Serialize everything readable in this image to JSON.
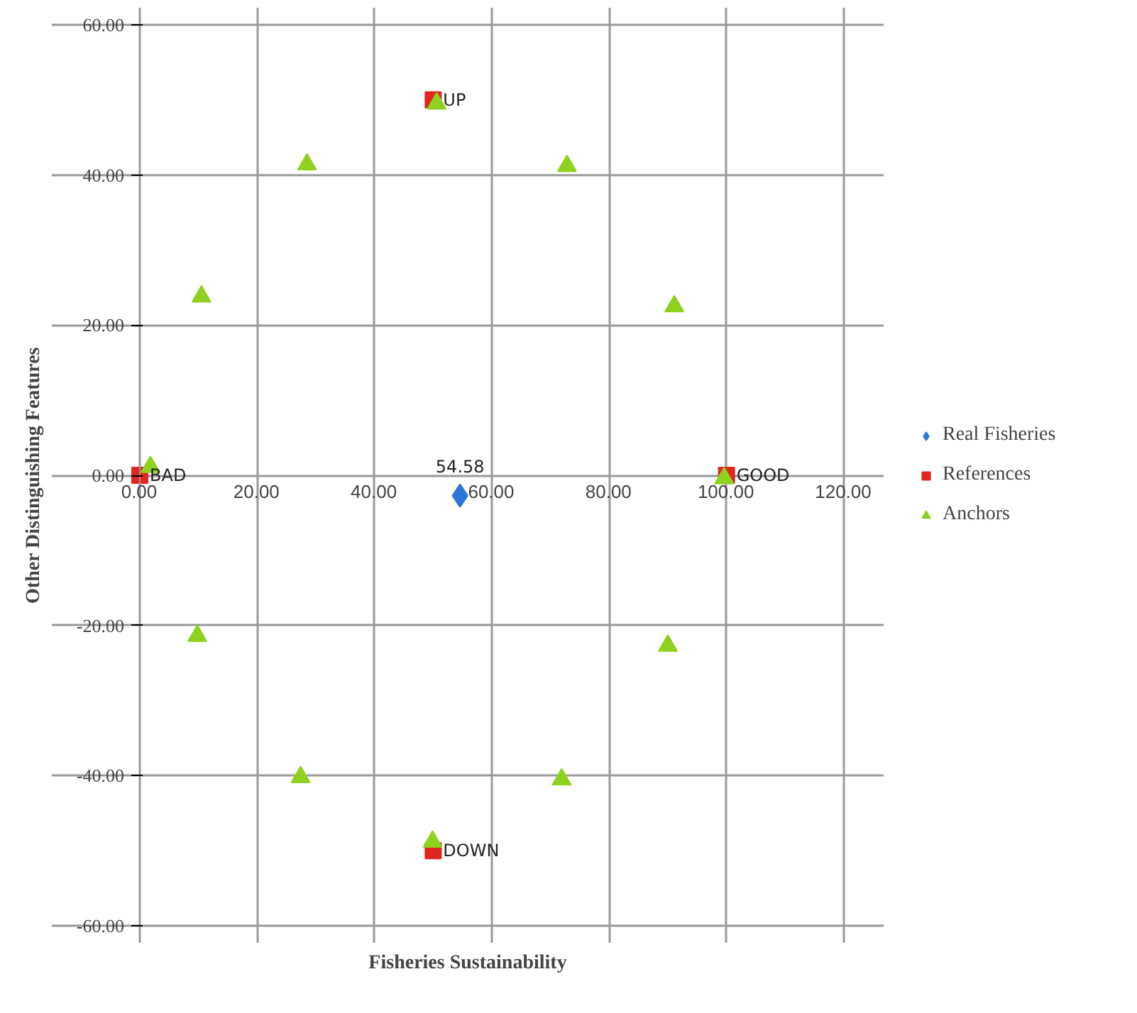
{
  "chart_data": {
    "type": "scatter",
    "xlabel": "Fisheries Sustainability",
    "ylabel": "Other Distinguishing Features",
    "xlim": [
      0,
      120
    ],
    "ylim": [
      -60,
      60
    ],
    "xticks": [
      {
        "value": 0,
        "label": "0.00"
      },
      {
        "value": 20,
        "label": "20.00"
      },
      {
        "value": 40,
        "label": "40.00"
      },
      {
        "value": 60,
        "label": "60.00"
      },
      {
        "value": 80,
        "label": "80.00"
      },
      {
        "value": 100,
        "label": "100.00"
      },
      {
        "value": 120,
        "label": "120.00"
      }
    ],
    "yticks": [
      {
        "value": -60,
        "label": "-60.00"
      },
      {
        "value": -40,
        "label": "-40.00"
      },
      {
        "value": -20,
        "label": "-20.00"
      },
      {
        "value": 0,
        "label": "0.00"
      },
      {
        "value": 20,
        "label": "20.00"
      },
      {
        "value": 40,
        "label": "40.00"
      },
      {
        "value": 60,
        "label": "60.00"
      }
    ],
    "grid": true,
    "legend": "right",
    "series": [
      {
        "name": "Real Fisheries",
        "color": "#2e75d6",
        "marker": "diamond",
        "x": [
          54.58
        ],
        "values": [
          -2.7
        ]
      },
      {
        "name": "References",
        "color": "#e0261f",
        "marker": "square",
        "x": [
          0,
          100,
          50,
          50
        ],
        "values": [
          0,
          0,
          50,
          -50
        ]
      },
      {
        "name": "Anchors",
        "color": "#8fd11f",
        "marker": "triangle",
        "x": [
          1.8,
          10.5,
          28.5,
          50.6,
          72.8,
          91.1,
          99.6,
          90,
          71.9,
          49.9,
          27.4,
          9.8
        ],
        "values": [
          1.1,
          23.8,
          41.4,
          49.5,
          41.2,
          22.5,
          -0.4,
          -22.7,
          -40.5,
          -48.8,
          -40.2,
          -21.4
        ]
      }
    ],
    "annotations": [
      {
        "text": "BAD",
        "x": 0,
        "y": 0
      },
      {
        "text": "GOOD",
        "x": 100,
        "y": 0
      },
      {
        "text": "UP",
        "x": 50,
        "y": 50
      },
      {
        "text": "DOWN",
        "x": 50,
        "y": -50
      },
      {
        "text": "54.58",
        "x": 54.58,
        "y": -2.7
      }
    ]
  }
}
